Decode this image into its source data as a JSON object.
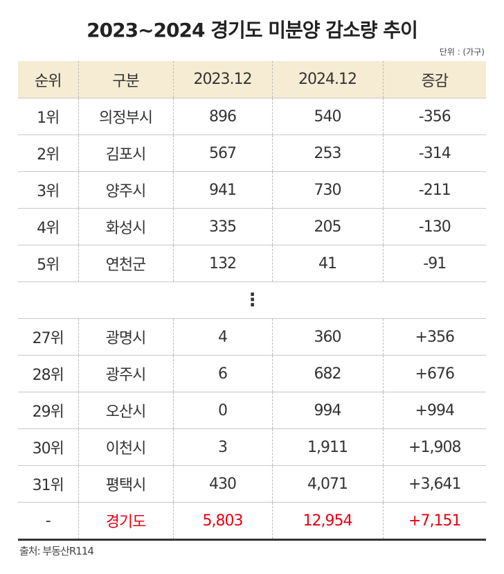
{
  "title": "2023~2024 경기도 미분양 감소량 추이",
  "unit": "단위 : (가구)",
  "headers": [
    "순위",
    "구분",
    "2023.12",
    "2024.12",
    "증감"
  ],
  "rows_top": [
    [
      "1위",
      "의정부시",
      "896",
      "540",
      "-356"
    ],
    [
      "2위",
      "김포시",
      "567",
      "253",
      "-314"
    ],
    [
      "3위",
      "양주시",
      "941",
      "730",
      "-211"
    ],
    [
      "4위",
      "화성시",
      "335",
      "205",
      "-130"
    ],
    [
      "5위",
      "연천군",
      "132",
      "41",
      "-91"
    ]
  ],
  "ellipsis": "⋮",
  "rows_bottom": [
    [
      "27위",
      "광명시",
      "4",
      "360",
      "+356"
    ],
    [
      "28위",
      "광주시",
      "6",
      "682",
      "+676"
    ],
    [
      "29위",
      "오산시",
      "0",
      "994",
      "+994"
    ],
    [
      "30위",
      "이천시",
      "3",
      "1,911",
      "+1,908"
    ],
    [
      "31위",
      "평택시",
      "430",
      "4,071",
      "+3,641"
    ]
  ],
  "total": [
    "-",
    "경기도",
    "5,803",
    "12,954",
    "+7,151"
  ],
  "source": "출처: 부동산R114",
  "colors": {
    "header_bg": "#f6ecd3",
    "highlight": "#e60012"
  }
}
